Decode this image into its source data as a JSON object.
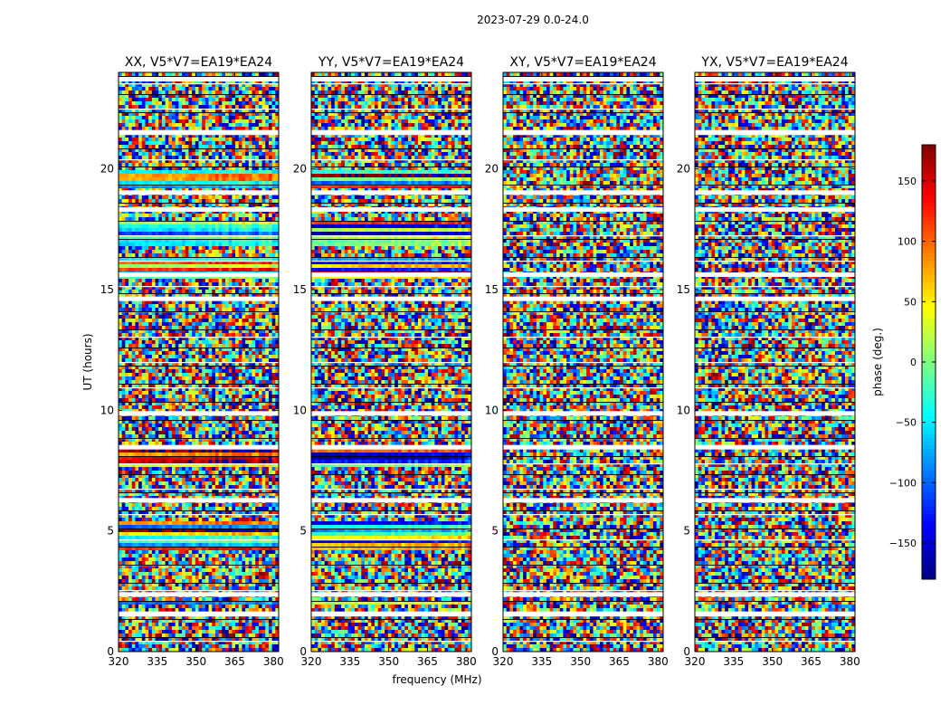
{
  "chart_data": {
    "type": "heatmap",
    "suptitle": "2023-07-29 0.0-24.0",
    "xlabel": "frequency (MHz)",
    "ylabel": "UT (hours)",
    "xlim": [
      320,
      382
    ],
    "ylim": [
      0,
      24
    ],
    "xticks": [
      320,
      335,
      350,
      365,
      380
    ],
    "yticks": [
      0,
      5,
      10,
      15,
      20
    ],
    "colorbar": {
      "label": "phase (deg.)",
      "range": [
        -180,
        180
      ],
      "ticks": [
        150,
        100,
        50,
        0,
        -50,
        -100,
        -150
      ],
      "tick_labels": [
        "150",
        "100",
        "50",
        "0",
        "−50",
        "−100",
        "−150"
      ],
      "colormap": "jet",
      "colors": [
        "#00007f",
        "#0000ff",
        "#007fff",
        "#00ffff",
        "#7fff7f",
        "#ffff00",
        "#ff7f00",
        "#ff0000",
        "#7f0000"
      ]
    },
    "panels": [
      {
        "title": "XX, V5*V7=EA19*EA24",
        "coherent_bands_hours": [
          [
            1.9,
            2.1
          ],
          [
            4.2,
            5.4
          ],
          [
            7.7,
            8.5
          ],
          [
            15.4,
            16.4
          ],
          [
            16.8,
            17.9
          ],
          [
            19.2,
            20.0
          ]
        ]
      },
      {
        "title": "YY, V5*V7=EA19*EA24",
        "coherent_bands_hours": [
          [
            1.9,
            2.1
          ],
          [
            4.2,
            5.4
          ],
          [
            7.7,
            8.5
          ],
          [
            15.4,
            16.4
          ],
          [
            16.8,
            17.9
          ],
          [
            19.2,
            20.0
          ]
        ]
      },
      {
        "title": "XY, V5*V7=EA19*EA24",
        "coherent_bands_hours": []
      },
      {
        "title": "YX, V5*V7=EA19*EA24",
        "coherent_bands_hours": []
      }
    ],
    "flagged_gaps_hours": [
      1.55,
      2.35,
      6.25,
      8.45,
      9.85,
      14.6,
      15.6,
      18.3,
      19.0,
      21.5,
      23.7
    ]
  }
}
